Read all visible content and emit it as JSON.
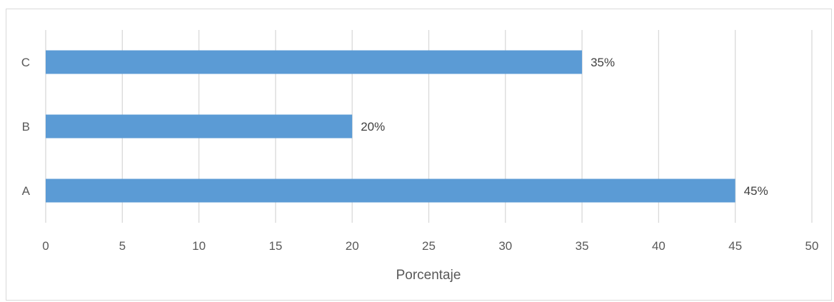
{
  "chart_data": {
    "type": "bar",
    "orientation": "horizontal",
    "categories": [
      "A",
      "B",
      "C"
    ],
    "values": [
      45,
      20,
      35
    ],
    "data_labels": [
      "45%",
      "20%",
      "35%"
    ],
    "title": "",
    "xlabel": "Porcentaje",
    "ylabel": "",
    "xlim": [
      0,
      50
    ],
    "xticks": [
      0,
      5,
      10,
      15,
      20,
      25,
      30,
      35,
      40,
      45,
      50
    ],
    "grid": "vertical",
    "legend": "none",
    "bar_color": "#5b9bd5",
    "grid_color": "#d9d9d9",
    "text_color": "#595959"
  }
}
